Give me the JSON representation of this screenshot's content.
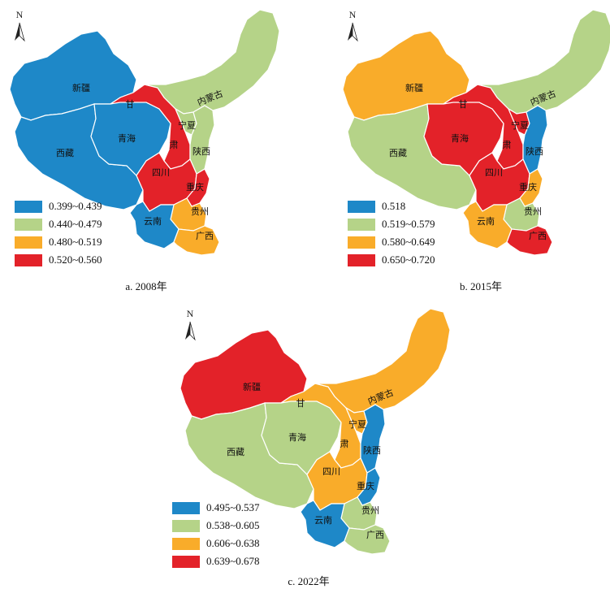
{
  "colors": {
    "blue": "#1e88c8",
    "green": "#b5d388",
    "orange": "#f9ac2a",
    "red": "#e32229",
    "border": "#ffffff"
  },
  "north_label": "N",
  "provinces": {
    "xinjiang": "新疆",
    "xizang": "西藏",
    "qinghai": "青海",
    "gan": "甘",
    "su": "肃",
    "ningxia": "宁夏",
    "neimenggu": "内蒙古",
    "shaanxi": "陕西",
    "sichuan": "四川",
    "chongqing": "重庆",
    "guizhou": "贵州",
    "yunnan": "云南",
    "guangxi": "广西"
  },
  "maps": [
    {
      "caption": "a.  2008年",
      "legend": [
        {
          "range": "0.399~0.439",
          "color": "blue"
        },
        {
          "range": "0.440~0.479",
          "color": "green"
        },
        {
          "range": "0.480~0.519",
          "color": "orange"
        },
        {
          "range": "0.520~0.560",
          "color": "red"
        }
      ],
      "fills": {
        "xinjiang": "blue",
        "xizang": "blue",
        "qinghai": "blue",
        "gansu": "red",
        "ningxia": "green",
        "neimenggu": "green",
        "shaanxi": "green",
        "sichuan": "red",
        "chongqing": "red",
        "guizhou": "orange",
        "yunnan": "blue",
        "guangxi": "orange"
      }
    },
    {
      "caption": "b.  2015年",
      "legend": [
        {
          "range": "0.518",
          "color": "blue"
        },
        {
          "range": "0.519~0.579",
          "color": "green"
        },
        {
          "range": "0.580~0.649",
          "color": "orange"
        },
        {
          "range": "0.650~0.720",
          "color": "red"
        }
      ],
      "fills": {
        "xinjiang": "orange",
        "xizang": "green",
        "qinghai": "red",
        "gansu": "red",
        "ningxia": "red",
        "neimenggu": "green",
        "shaanxi": "blue",
        "sichuan": "red",
        "chongqing": "orange",
        "guizhou": "green",
        "yunnan": "orange",
        "guangxi": "red"
      }
    },
    {
      "caption": "c.  2022年",
      "legend": [
        {
          "range": "0.495~0.537",
          "color": "blue"
        },
        {
          "range": "0.538~0.605",
          "color": "green"
        },
        {
          "range": "0.606~0.638",
          "color": "orange"
        },
        {
          "range": "0.639~0.678",
          "color": "red"
        }
      ],
      "fills": {
        "xinjiang": "red",
        "xizang": "green",
        "qinghai": "green",
        "gansu": "orange",
        "ningxia": "orange",
        "neimenggu": "orange",
        "shaanxi": "blue",
        "sichuan": "orange",
        "chongqing": "blue",
        "guizhou": "green",
        "yunnan": "blue",
        "guangxi": "green"
      }
    }
  ]
}
